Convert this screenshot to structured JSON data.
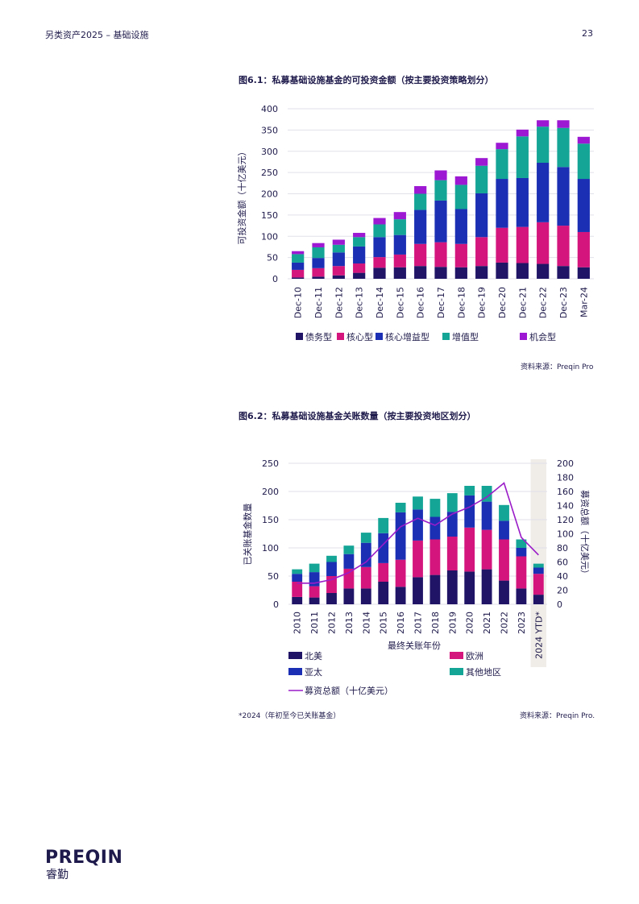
{
  "header": {
    "left": "另类资产2025 – 基础设施",
    "page_number": "23"
  },
  "figures": {
    "fig1": {
      "title": "图6.1：私募基础设施基金的可投资金额（按主要投资策略划分）",
      "source": "资料来源：Preqin Pro"
    },
    "fig2": {
      "title": "图6.2：私募基础设施基金关账数量（按主要投资地区划分）",
      "note": "*2024（年初至今已关账基金）",
      "source": "资料来源：Preqin Pro."
    }
  },
  "brand": {
    "logo_text": "PREQIN",
    "logo_sub": "睿勤"
  },
  "colors": {
    "navy": "#1f1466",
    "magenta": "#d4157d",
    "blue": "#1a2fb4",
    "teal": "#14a596",
    "purple": "#9c18d2",
    "line": "#9a1bc8",
    "grid": "#e1e1ea",
    "shade": "#f0ece8"
  },
  "chart_data": [
    {
      "type": "bar",
      "stacked": true,
      "title": "图6.1：私募基础设施基金的可投资金额（按主要投资策略划分）",
      "ylabel": "可投资金额（十亿美元）",
      "ylim": [
        0,
        400
      ],
      "yticks": [
        "0",
        "50",
        "100",
        "150",
        "200",
        "250",
        "300",
        "350",
        "400"
      ],
      "grid": true,
      "legend_position": "bottom",
      "categories": [
        "Dec-10",
        "Dec-11",
        "Dec-12",
        "Dec-13",
        "Dec-14",
        "Dec-15",
        "Dec-16",
        "Dec-17",
        "Dec-18",
        "Dec-19",
        "Dec-20",
        "Dec-21",
        "Dec-22",
        "Dec-23",
        "Mar-24"
      ],
      "series": [
        {
          "name": "债务型",
          "color": "#1f1466",
          "values": [
            3,
            5,
            8,
            14,
            26,
            27,
            30,
            28,
            27,
            30,
            38,
            37,
            35,
            30,
            27
          ]
        },
        {
          "name": "核心型",
          "color": "#d4157d",
          "values": [
            18,
            20,
            22,
            22,
            25,
            30,
            52,
            58,
            55,
            68,
            82,
            85,
            98,
            95,
            83
          ]
        },
        {
          "name": "核心增益型",
          "color": "#1a2fb4",
          "values": [
            17,
            24,
            32,
            40,
            47,
            46,
            80,
            98,
            82,
            103,
            115,
            115,
            140,
            138,
            125
          ]
        },
        {
          "name": "增值型",
          "color": "#14a596",
          "values": [
            20,
            25,
            18,
            22,
            30,
            37,
            38,
            48,
            57,
            65,
            70,
            98,
            85,
            92,
            83
          ]
        },
        {
          "name": "机会型",
          "color": "#9c18d2",
          "values": [
            7,
            10,
            12,
            10,
            15,
            17,
            18,
            23,
            20,
            18,
            15,
            16,
            15,
            18,
            16
          ]
        }
      ]
    },
    {
      "type": "bar",
      "stacked": true,
      "title": "图6.2：私募基础设施基金关账数量（按主要投资地区划分）",
      "xlabel": "最终关账年份",
      "ylabel": "已关账基金数量",
      "y2label": "募资总额（十亿美元）",
      "ylim": [
        0,
        250
      ],
      "y2lim": [
        0,
        200
      ],
      "yticks": [
        "0",
        "50",
        "100",
        "150",
        "200",
        "250"
      ],
      "y2ticks": [
        "0",
        "20",
        "40",
        "60",
        "80",
        "100",
        "120",
        "140",
        "160",
        "180",
        "200"
      ],
      "grid": true,
      "legend_position": "bottom",
      "categories": [
        "2010",
        "2011",
        "2012",
        "2013",
        "2014",
        "2015",
        "2016",
        "2017",
        "2018",
        "2019",
        "2020",
        "2021",
        "2022",
        "2023",
        "2024 YTD*"
      ],
      "series": [
        {
          "name": "北美",
          "color": "#1f1466",
          "values": [
            13,
            12,
            20,
            28,
            28,
            40,
            31,
            48,
            52,
            60,
            58,
            62,
            42,
            28,
            17
          ]
        },
        {
          "name": "欧洲",
          "color": "#d4157d",
          "values": [
            27,
            20,
            30,
            35,
            38,
            33,
            48,
            65,
            63,
            60,
            78,
            70,
            73,
            57,
            37
          ]
        },
        {
          "name": "亚太",
          "color": "#1a2fb4",
          "values": [
            14,
            25,
            25,
            26,
            43,
            53,
            84,
            55,
            40,
            44,
            57,
            50,
            33,
            15,
            11
          ]
        },
        {
          "name": "其他地区",
          "color": "#14a596",
          "values": [
            8,
            15,
            11,
            15,
            18,
            27,
            17,
            23,
            32,
            33,
            17,
            28,
            28,
            15,
            7
          ]
        }
      ],
      "line_series": {
        "name": "募资总额（十亿美元）",
        "color": "#9a1bc8",
        "axis": "right",
        "values": [
          30,
          30,
          35,
          45,
          60,
          85,
          110,
          122,
          112,
          128,
          138,
          152,
          172,
          95,
          70
        ]
      },
      "shaded_category": "2024 YTD*"
    }
  ]
}
